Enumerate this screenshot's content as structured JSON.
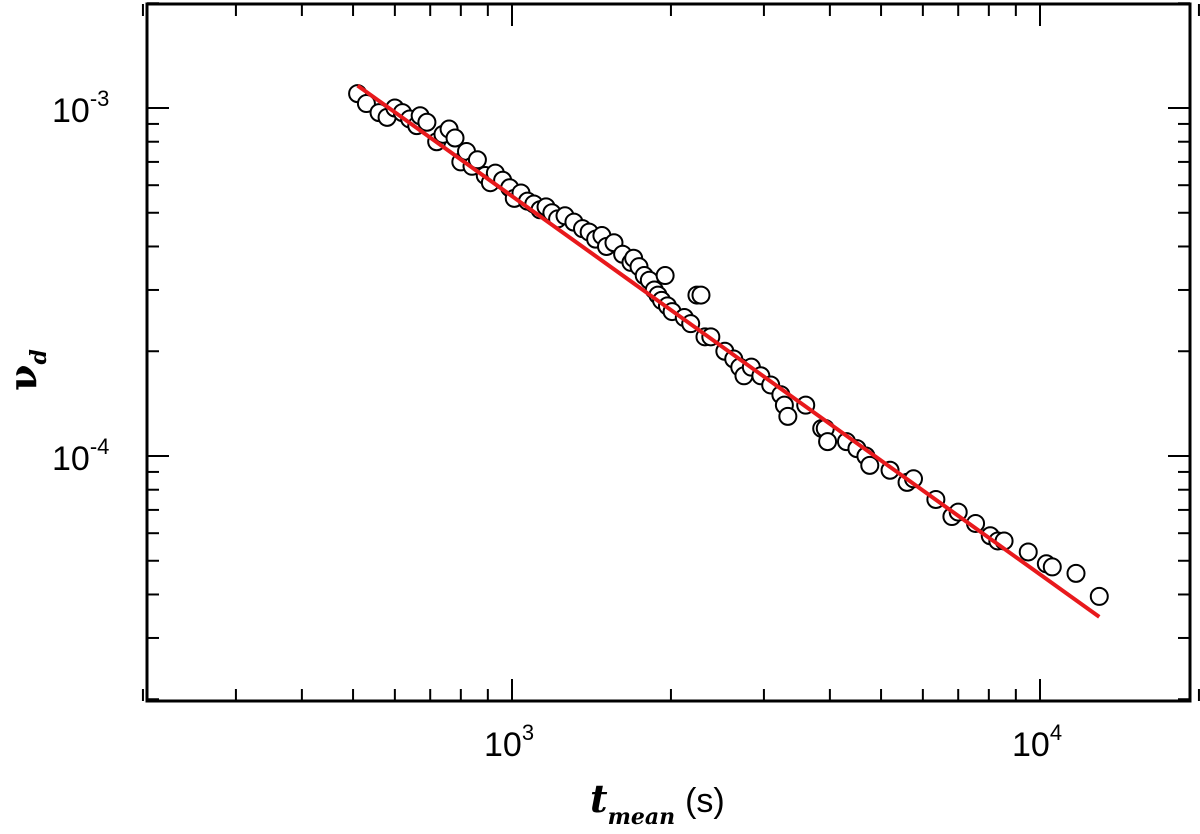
{
  "chart_data": {
    "type": "scatter",
    "title": "",
    "x_scale": "log",
    "y_scale": "log",
    "xlim": [
      200,
      20000
    ],
    "ylim": [
      2e-05,
      0.002
    ],
    "grid": false,
    "x_tick_labels": [
      {
        "value": 1000,
        "base": "10",
        "exp": "3"
      },
      {
        "value": 10000,
        "base": "10",
        "exp": "4"
      }
    ],
    "y_tick_labels": [
      {
        "value": 0.001,
        "base": "10",
        "exp": "-3"
      },
      {
        "value": 0.0001,
        "base": "10",
        "exp": "-4"
      }
    ],
    "xlabel": {
      "symbol": "t",
      "subscript": "mean",
      "unit": "(s)"
    },
    "ylabel": {
      "symbol": "ν",
      "subscript": "d"
    },
    "marker": {
      "shape": "circle",
      "fill": "#ffffff",
      "stroke": "#000000"
    },
    "fit_line": {
      "color": "#e8191c",
      "points": [
        [
          510,
          0.00116
        ],
        [
          12950,
          3.45e-05
        ]
      ]
    },
    "points": [
      [
        510,
        0.0011
      ],
      [
        530,
        0.00103
      ],
      [
        560,
        0.00097
      ],
      [
        580,
        0.00094
      ],
      [
        600,
        0.001
      ],
      [
        620,
        0.00097
      ],
      [
        640,
        0.00093
      ],
      [
        660,
        0.00089
      ],
      [
        670,
        0.00095
      ],
      [
        690,
        0.00091
      ],
      [
        720,
        0.0008
      ],
      [
        740,
        0.00084
      ],
      [
        760,
        0.00087
      ],
      [
        780,
        0.00082
      ],
      [
        800,
        0.0007
      ],
      [
        820,
        0.00075
      ],
      [
        840,
        0.00068
      ],
      [
        860,
        0.00071
      ],
      [
        890,
        0.00064
      ],
      [
        910,
        0.00061
      ],
      [
        930,
        0.00065
      ],
      [
        960,
        0.00062
      ],
      [
        990,
        0.00059
      ],
      [
        1010,
        0.00055
      ],
      [
        1040,
        0.00057
      ],
      [
        1070,
        0.00054
      ],
      [
        1100,
        0.00053
      ],
      [
        1130,
        0.00051
      ],
      [
        1160,
        0.00052
      ],
      [
        1190,
        0.0005
      ],
      [
        1220,
        0.00048
      ],
      [
        1260,
        0.00049
      ],
      [
        1310,
        0.00047
      ],
      [
        1360,
        0.00045
      ],
      [
        1400,
        0.00044
      ],
      [
        1440,
        0.00042
      ],
      [
        1480,
        0.00043
      ],
      [
        1510,
        0.0004
      ],
      [
        1560,
        0.00041
      ],
      [
        1620,
        0.00038
      ],
      [
        1680,
        0.00036
      ],
      [
        1700,
        0.00037
      ],
      [
        1740,
        0.00035
      ],
      [
        1780,
        0.00033
      ],
      [
        1820,
        0.00032
      ],
      [
        1860,
        0.0003
      ],
      [
        1890,
        0.00029
      ],
      [
        1920,
        0.00028
      ],
      [
        1950,
        0.00033
      ],
      [
        1970,
        0.00027
      ],
      [
        2010,
        0.00026
      ],
      [
        2120,
        0.00025
      ],
      [
        2180,
        0.00024
      ],
      [
        2240,
        0.00029
      ],
      [
        2280,
        0.00029
      ],
      [
        2320,
        0.00022
      ],
      [
        2380,
        0.00022
      ],
      [
        2530,
        0.0002
      ],
      [
        2630,
        0.00019
      ],
      [
        2700,
        0.00018
      ],
      [
        2750,
        0.00017
      ],
      [
        2840,
        0.00018
      ],
      [
        2960,
        0.00017
      ],
      [
        3090,
        0.00016
      ],
      [
        3230,
        0.00015
      ],
      [
        3280,
        0.00014
      ],
      [
        3330,
        0.00013
      ],
      [
        3600,
        0.00014
      ],
      [
        3860,
        0.00012
      ],
      [
        3920,
        0.00012
      ],
      [
        3960,
        0.00011
      ],
      [
        4300,
        0.00011
      ],
      [
        4500,
        0.000105
      ],
      [
        4680,
        0.0001
      ],
      [
        4760,
        9.4e-05
      ],
      [
        5200,
        9.1e-05
      ],
      [
        5600,
        8.4e-05
      ],
      [
        5760,
        8.6e-05
      ],
      [
        6350,
        7.5e-05
      ],
      [
        6810,
        6.7e-05
      ],
      [
        7000,
        6.9e-05
      ],
      [
        7550,
        6.4e-05
      ],
      [
        8050,
        5.9e-05
      ],
      [
        8320,
        5.7e-05
      ],
      [
        8550,
        5.7e-05
      ],
      [
        9500,
        5.3e-05
      ],
      [
        10280,
        4.9e-05
      ],
      [
        10550,
        4.8e-05
      ],
      [
        11700,
        4.6e-05
      ],
      [
        12950,
        3.95e-05
      ]
    ]
  }
}
